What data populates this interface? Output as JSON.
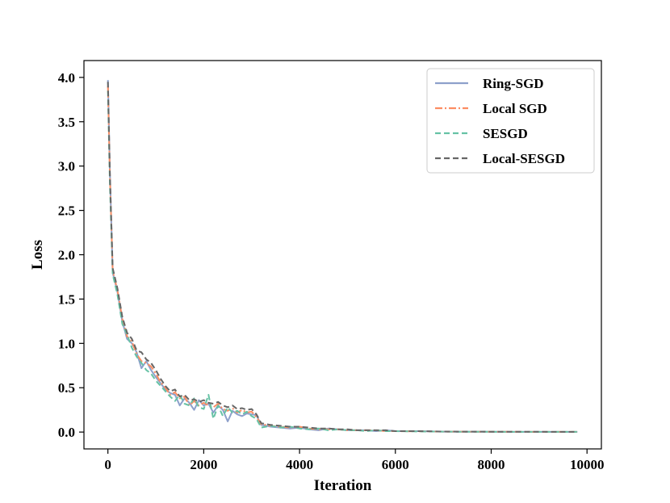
{
  "chart_data": {
    "type": "line",
    "title": "",
    "xlabel": "Iteration",
    "ylabel": "Loss",
    "xlim": [
      -500,
      10300
    ],
    "ylim": [
      -0.19,
      4.19
    ],
    "xticks": [
      0,
      2000,
      4000,
      6000,
      8000,
      10000
    ],
    "xtick_labels": [
      "0",
      "2000",
      "4000",
      "6000",
      "8000",
      "10000"
    ],
    "yticks": [
      0.0,
      0.5,
      1.0,
      1.5,
      2.0,
      2.5,
      3.0,
      3.5,
      4.0
    ],
    "ytick_labels": [
      "0.0",
      "0.5",
      "1.0",
      "1.5",
      "2.0",
      "2.5",
      "3.0",
      "3.5",
      "4.0"
    ],
    "grid": false,
    "legend_position": "top-right",
    "series": [
      {
        "name": "Ring-SGD",
        "color": "#8da0cb",
        "dash": "solid",
        "x": [
          0,
          40,
          100,
          200,
          300,
          400,
          500,
          600,
          700,
          800,
          900,
          1000,
          1100,
          1200,
          1300,
          1400,
          1500,
          1600,
          1700,
          1800,
          1900,
          2000,
          2100,
          2200,
          2300,
          2400,
          2500,
          2600,
          2700,
          2800,
          2900,
          3000,
          3100,
          3200,
          3400,
          3600,
          3800,
          4000,
          4200,
          4400,
          4600,
          4800,
          5000,
          5200,
          5400,
          5600,
          5800,
          6000,
          6500,
          7000,
          7500,
          8000,
          8500,
          9000,
          9500,
          9800
        ],
        "y": [
          3.97,
          2.95,
          1.8,
          1.58,
          1.25,
          1.05,
          1.0,
          0.9,
          0.72,
          0.8,
          0.7,
          0.62,
          0.55,
          0.48,
          0.44,
          0.42,
          0.3,
          0.38,
          0.33,
          0.25,
          0.36,
          0.3,
          0.32,
          0.22,
          0.3,
          0.25,
          0.12,
          0.24,
          0.2,
          0.18,
          0.21,
          0.2,
          0.19,
          0.08,
          0.06,
          0.05,
          0.04,
          0.05,
          0.03,
          0.02,
          0.04,
          0.03,
          0.02,
          0.02,
          0.02,
          0.01,
          0.02,
          0.01,
          0.01,
          0.005,
          0.004,
          0.003,
          0.002,
          0.002,
          0.002,
          0.002
        ]
      },
      {
        "name": "Local SGD",
        "color": "#fc8d62",
        "dash": "dashdot",
        "x": [
          0,
          40,
          100,
          200,
          300,
          400,
          500,
          600,
          700,
          800,
          900,
          1000,
          1100,
          1200,
          1300,
          1400,
          1500,
          1600,
          1700,
          1800,
          1900,
          2000,
          2100,
          2200,
          2300,
          2400,
          2500,
          2600,
          2700,
          2800,
          2900,
          3000,
          3100,
          3200,
          3400,
          3600,
          3800,
          4000,
          4200,
          4400,
          4600,
          4800,
          5000,
          5200,
          5400,
          5600,
          5800,
          6000,
          6500,
          7000,
          7500,
          8000,
          8500,
          9000,
          9500,
          9800
        ],
        "y": [
          3.9,
          2.9,
          1.82,
          1.6,
          1.28,
          1.08,
          1.02,
          0.88,
          0.8,
          0.78,
          0.74,
          0.66,
          0.56,
          0.5,
          0.42,
          0.45,
          0.38,
          0.4,
          0.3,
          0.35,
          0.3,
          0.33,
          0.3,
          0.28,
          0.32,
          0.26,
          0.24,
          0.27,
          0.22,
          0.25,
          0.22,
          0.23,
          0.17,
          0.09,
          0.07,
          0.06,
          0.05,
          0.06,
          0.04,
          0.03,
          0.03,
          0.03,
          0.02,
          0.02,
          0.02,
          0.02,
          0.01,
          0.01,
          0.008,
          0.005,
          0.004,
          0.003,
          0.003,
          0.002,
          0.002,
          0.002
        ]
      },
      {
        "name": "SESGD",
        "color": "#66c2a5",
        "dash": "dashed",
        "x": [
          0,
          40,
          100,
          200,
          300,
          400,
          500,
          600,
          700,
          800,
          900,
          1000,
          1100,
          1200,
          1300,
          1400,
          1500,
          1600,
          1700,
          1800,
          1900,
          2000,
          2100,
          2200,
          2300,
          2400,
          2500,
          2600,
          2700,
          2800,
          2900,
          3000,
          3100,
          3200,
          3400,
          3600,
          3800,
          4000,
          4200,
          4400,
          4600,
          4800,
          5000,
          5200,
          5400,
          5600,
          5800,
          6000,
          6500,
          7000,
          7500,
          8000,
          8500,
          9000,
          9500,
          9800
        ],
        "y": [
          3.85,
          2.8,
          1.78,
          1.55,
          1.22,
          1.1,
          0.95,
          0.85,
          0.78,
          0.7,
          0.66,
          0.58,
          0.52,
          0.46,
          0.4,
          0.35,
          0.42,
          0.32,
          0.3,
          0.38,
          0.28,
          0.26,
          0.42,
          0.15,
          0.3,
          0.18,
          0.28,
          0.22,
          0.24,
          0.2,
          0.23,
          0.18,
          0.15,
          0.05,
          0.07,
          0.05,
          0.06,
          0.04,
          0.03,
          0.04,
          0.02,
          0.03,
          0.02,
          0.02,
          0.01,
          0.02,
          0.01,
          0.01,
          0.007,
          0.005,
          0.003,
          0.003,
          0.002,
          0.002,
          0.002,
          0.002
        ]
      },
      {
        "name": "Local-SESGD",
        "color": "#666666",
        "dash": "dashed",
        "x": [
          0,
          40,
          100,
          200,
          300,
          400,
          500,
          600,
          700,
          800,
          900,
          1000,
          1100,
          1200,
          1300,
          1400,
          1500,
          1600,
          1700,
          1800,
          1900,
          2000,
          2100,
          2200,
          2300,
          2400,
          2500,
          2600,
          2700,
          2800,
          2900,
          3000,
          3100,
          3200,
          3400,
          3600,
          3800,
          4000,
          4200,
          4400,
          4600,
          4800,
          5000,
          5200,
          5400,
          5600,
          5800,
          6000,
          6500,
          7000,
          7500,
          8000,
          8500,
          9000,
          9500,
          9800
        ],
        "y": [
          3.95,
          2.92,
          1.85,
          1.62,
          1.3,
          1.12,
          1.05,
          0.92,
          0.9,
          0.82,
          0.78,
          0.7,
          0.6,
          0.52,
          0.46,
          0.48,
          0.4,
          0.42,
          0.36,
          0.37,
          0.34,
          0.36,
          0.33,
          0.32,
          0.34,
          0.3,
          0.28,
          0.3,
          0.26,
          0.27,
          0.25,
          0.26,
          0.2,
          0.1,
          0.08,
          0.07,
          0.06,
          0.06,
          0.05,
          0.04,
          0.04,
          0.03,
          0.03,
          0.02,
          0.02,
          0.02,
          0.02,
          0.01,
          0.01,
          0.006,
          0.005,
          0.004,
          0.003,
          0.003,
          0.002,
          0.002
        ]
      }
    ]
  }
}
